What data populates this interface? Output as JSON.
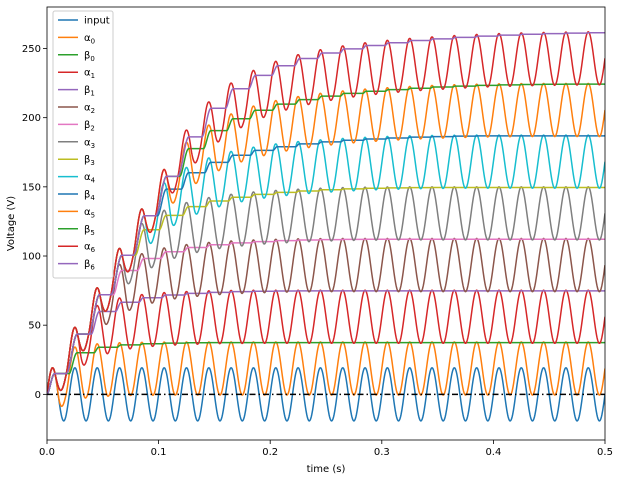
{
  "chart_data": {
    "type": "line",
    "xlabel": "time (s)",
    "ylabel": "Voltage (V)",
    "xlim": [
      0,
      0.5
    ],
    "ylim": [
      -33,
      280
    ],
    "xticks": [
      0.0,
      0.1,
      0.2,
      0.3,
      0.4,
      0.5
    ],
    "xtick_labels": [
      "0.0",
      "0.1",
      "0.2",
      "0.3",
      "0.4",
      "0.5"
    ],
    "yticks": [
      0,
      50,
      100,
      150,
      200,
      250
    ],
    "ytick_labels": [
      "0",
      "50",
      "100",
      "150",
      "200",
      "250"
    ],
    "grid": false,
    "legend_position": "top-left",
    "input_amplitude": 19.2,
    "input_frequency_hz": 50,
    "stage_step_v": 38.4,
    "zero_line": {
      "y": 0,
      "style": "dash-dot",
      "color": "#000000"
    },
    "series": [
      {
        "name": "input",
        "label_main": "input",
        "label_sub": "",
        "color": "#1f77b4",
        "kind": "input"
      },
      {
        "name": "α0",
        "label_main": "α",
        "label_sub": "0",
        "color": "#ff7f0e",
        "kind": "alpha",
        "stage": 0
      },
      {
        "name": "β0",
        "label_main": "β",
        "label_sub": "0",
        "color": "#2ca02c",
        "kind": "beta",
        "stage": 0
      },
      {
        "name": "α1",
        "label_main": "α",
        "label_sub": "1",
        "color": "#d62728",
        "kind": "alpha",
        "stage": 1
      },
      {
        "name": "β1",
        "label_main": "β",
        "label_sub": "1",
        "color": "#9467bd",
        "kind": "beta",
        "stage": 1
      },
      {
        "name": "α2",
        "label_main": "α",
        "label_sub": "2",
        "color": "#8c564b",
        "kind": "alpha",
        "stage": 2
      },
      {
        "name": "β2",
        "label_main": "β",
        "label_sub": "2",
        "color": "#e377c2",
        "kind": "beta",
        "stage": 2
      },
      {
        "name": "α3",
        "label_main": "α",
        "label_sub": "3",
        "color": "#7f7f7f",
        "kind": "alpha",
        "stage": 3
      },
      {
        "name": "β3",
        "label_main": "β",
        "label_sub": "3",
        "color": "#bcbd22",
        "kind": "beta",
        "stage": 3
      },
      {
        "name": "α4",
        "label_main": "α",
        "label_sub": "4",
        "color": "#17becf",
        "kind": "alpha",
        "stage": 4
      },
      {
        "name": "β4",
        "label_main": "β",
        "label_sub": "4",
        "color": "#1f77b4",
        "kind": "beta",
        "stage": 4
      },
      {
        "name": "α5",
        "label_main": "α",
        "label_sub": "5",
        "color": "#ff7f0e",
        "kind": "alpha",
        "stage": 5
      },
      {
        "name": "β5",
        "label_main": "β",
        "label_sub": "5",
        "color": "#2ca02c",
        "kind": "beta",
        "stage": 5
      },
      {
        "name": "α6",
        "label_main": "α",
        "label_sub": "6",
        "color": "#d62728",
        "kind": "alpha",
        "stage": 6
      },
      {
        "name": "β6",
        "label_main": "β",
        "label_sub": "6",
        "color": "#9467bd",
        "kind": "beta",
        "stage": 6
      }
    ]
  }
}
